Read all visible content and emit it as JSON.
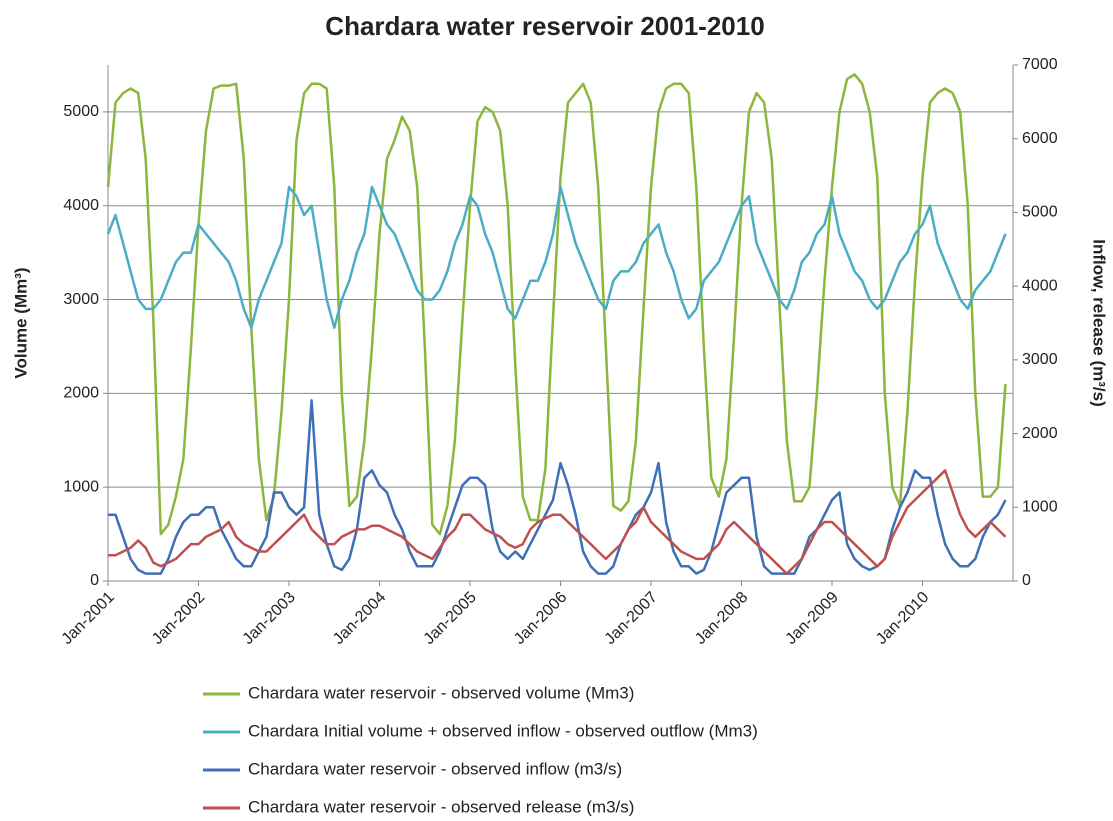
{
  "chart_data": {
    "type": "line",
    "title": "Chardara water reservoir  2001-2010",
    "ylabel": "Volume (Mm³)",
    "y2label": "Inflow, release (m³/s)",
    "x": [
      "2001-01",
      "2001-02",
      "2001-03",
      "2001-04",
      "2001-05",
      "2001-06",
      "2001-07",
      "2001-08",
      "2001-09",
      "2001-10",
      "2001-11",
      "2001-12",
      "2002-01",
      "2002-02",
      "2002-03",
      "2002-04",
      "2002-05",
      "2002-06",
      "2002-07",
      "2002-08",
      "2002-09",
      "2002-10",
      "2002-11",
      "2002-12",
      "2003-01",
      "2003-02",
      "2003-03",
      "2003-04",
      "2003-05",
      "2003-06",
      "2003-07",
      "2003-08",
      "2003-09",
      "2003-10",
      "2003-11",
      "2003-12",
      "2004-01",
      "2004-02",
      "2004-03",
      "2004-04",
      "2004-05",
      "2004-06",
      "2004-07",
      "2004-08",
      "2004-09",
      "2004-10",
      "2004-11",
      "2004-12",
      "2005-01",
      "2005-02",
      "2005-03",
      "2005-04",
      "2005-05",
      "2005-06",
      "2005-07",
      "2005-08",
      "2005-09",
      "2005-10",
      "2005-11",
      "2005-12",
      "2006-01",
      "2006-02",
      "2006-03",
      "2006-04",
      "2006-05",
      "2006-06",
      "2006-07",
      "2006-08",
      "2006-09",
      "2006-10",
      "2006-11",
      "2006-12",
      "2007-01",
      "2007-02",
      "2007-03",
      "2007-04",
      "2007-05",
      "2007-06",
      "2007-07",
      "2007-08",
      "2007-09",
      "2007-10",
      "2007-11",
      "2007-12",
      "2008-01",
      "2008-02",
      "2008-03",
      "2008-04",
      "2008-05",
      "2008-06",
      "2008-07",
      "2008-08",
      "2008-09",
      "2008-10",
      "2008-11",
      "2008-12",
      "2009-01",
      "2009-02",
      "2009-03",
      "2009-04",
      "2009-05",
      "2009-06",
      "2009-07",
      "2009-08",
      "2009-09",
      "2009-10",
      "2009-11",
      "2009-12",
      "2010-01",
      "2010-02",
      "2010-03",
      "2010-04",
      "2010-05",
      "2010-06",
      "2010-07",
      "2010-08",
      "2010-09",
      "2010-10",
      "2010-11",
      "2010-12"
    ],
    "xlim": [
      "2001-01",
      "2011-01"
    ],
    "xticks": [
      {
        "value": "2001-01",
        "label": "Jan-2001"
      },
      {
        "value": "2002-01",
        "label": "Jan-2002"
      },
      {
        "value": "2003-01",
        "label": "Jan-2003"
      },
      {
        "value": "2004-01",
        "label": "Jan-2004"
      },
      {
        "value": "2005-01",
        "label": "Jan-2005"
      },
      {
        "value": "2006-01",
        "label": "Jan-2006"
      },
      {
        "value": "2007-01",
        "label": "Jan-2007"
      },
      {
        "value": "2008-01",
        "label": "Jan-2008"
      },
      {
        "value": "2009-01",
        "label": "Jan-2009"
      },
      {
        "value": "2010-01",
        "label": "Jan-2010"
      }
    ],
    "ylim": [
      0,
      5500
    ],
    "yticks": [
      0,
      1000,
      2000,
      3000,
      4000,
      5000
    ],
    "y2lim": [
      0,
      7000
    ],
    "y2ticks": [
      0,
      1000,
      2000,
      3000,
      4000,
      5000,
      6000,
      7000
    ],
    "grid": true,
    "series": [
      {
        "name": "Chardara water reservoir - observed volume (Mm3)",
        "color": "#8db63c",
        "values": [
          4200,
          5100,
          5200,
          5250,
          5200,
          4500,
          2800,
          500,
          600,
          900,
          1300,
          2500,
          3800,
          4800,
          5250,
          5280,
          5280,
          5300,
          4500,
          2700,
          1300,
          650,
          900,
          1800,
          3000,
          4700,
          5200,
          5300,
          5300,
          5250,
          4200,
          2000,
          800,
          900,
          1500,
          2500,
          3700,
          4500,
          4700,
          4950,
          4800,
          4200,
          2500,
          600,
          500,
          800,
          1500,
          2800,
          4000,
          4900,
          5050,
          5000,
          4800,
          4000,
          2300,
          900,
          650,
          650,
          1200,
          2800,
          4300,
          5100,
          5200,
          5300,
          5100,
          4200,
          2500,
          800,
          750,
          850,
          1500,
          2900,
          4200,
          5000,
          5250,
          5300,
          5300,
          5200,
          4200,
          2500,
          1100,
          900,
          1300,
          2600,
          4000,
          5000,
          5200,
          5100,
          4500,
          3000,
          1500,
          850,
          850,
          1000,
          2000,
          3200,
          4200,
          5000,
          5350,
          5400,
          5300,
          5000,
          4300,
          2000,
          1000,
          800,
          1800,
          3200,
          4300,
          5100,
          5200,
          5250,
          5200,
          5000,
          4000,
          2000,
          900,
          900,
          1000,
          2100
        ]
      },
      {
        "name": "Chardara Initial volume + observed inflow - observed outflow (Mm3)",
        "color": "#4bacc6",
        "values": [
          3700,
          3900,
          3600,
          3300,
          3000,
          2900,
          2900,
          3000,
          3200,
          3400,
          3500,
          3500,
          3800,
          3700,
          3600,
          3500,
          3400,
          3200,
          2900,
          2700,
          3000,
          3200,
          3400,
          3600,
          4200,
          4100,
          3900,
          4000,
          3500,
          3000,
          2700,
          3000,
          3200,
          3500,
          3700,
          4200,
          4000,
          3800,
          3700,
          3500,
          3300,
          3100,
          3000,
          3000,
          3100,
          3300,
          3600,
          3800,
          4100,
          4000,
          3700,
          3500,
          3200,
          2900,
          2800,
          3000,
          3200,
          3200,
          3400,
          3700,
          4200,
          3900,
          3600,
          3400,
          3200,
          3000,
          2900,
          3200,
          3300,
          3300,
          3400,
          3600,
          3700,
          3800,
          3500,
          3300,
          3000,
          2800,
          2900,
          3200,
          3300,
          3400,
          3600,
          3800,
          4000,
          4100,
          3600,
          3400,
          3200,
          3000,
          2900,
          3100,
          3400,
          3500,
          3700,
          3800,
          4100,
          3700,
          3500,
          3300,
          3200,
          3000,
          2900,
          3000,
          3200,
          3400,
          3500,
          3700,
          3800,
          4000,
          3600,
          3400,
          3200,
          3000,
          2900,
          3100,
          3200,
          3300,
          3500,
          3700
        ]
      },
      {
        "name": "Chardara water reservoir - observed inflow (m3/s)",
        "color": "#3f6fb5",
        "axis": "y2",
        "values": [
          900,
          900,
          600,
          300,
          150,
          100,
          100,
          100,
          300,
          600,
          800,
          900,
          900,
          1000,
          1000,
          700,
          500,
          300,
          200,
          200,
          400,
          600,
          1200,
          1200,
          1000,
          900,
          1000,
          2450,
          900,
          500,
          200,
          150,
          300,
          700,
          1400,
          1500,
          1300,
          1200,
          900,
          700,
          400,
          200,
          200,
          200,
          400,
          700,
          1000,
          1300,
          1400,
          1400,
          1300,
          700,
          400,
          300,
          400,
          300,
          500,
          700,
          900,
          1100,
          1600,
          1300,
          900,
          400,
          200,
          100,
          100,
          200,
          500,
          700,
          900,
          1000,
          1200,
          1600,
          800,
          400,
          200,
          200,
          100,
          150,
          400,
          800,
          1200,
          1300,
          1400,
          1400,
          600,
          200,
          100,
          100,
          100,
          100,
          300,
          600,
          700,
          900,
          1100,
          1200,
          500,
          300,
          200,
          150,
          200,
          300,
          700,
          1000,
          1200,
          1500,
          1400,
          1400,
          900,
          500,
          300,
          200,
          200,
          300,
          600,
          800,
          900,
          1100
        ]
      },
      {
        "name": "Chardara water reservoir - observed release (m3/s)",
        "color": "#c0504d",
        "axis": "y2",
        "values": [
          350,
          350,
          400,
          450,
          550,
          450,
          250,
          200,
          250,
          300,
          400,
          500,
          500,
          600,
          650,
          700,
          800,
          600,
          500,
          450,
          400,
          400,
          500,
          600,
          700,
          800,
          900,
          700,
          600,
          500,
          500,
          600,
          650,
          700,
          700,
          750,
          750,
          700,
          650,
          600,
          500,
          400,
          350,
          300,
          450,
          600,
          700,
          900,
          900,
          800,
          700,
          650,
          600,
          500,
          450,
          500,
          700,
          800,
          850,
          900,
          900,
          800,
          700,
          600,
          500,
          400,
          300,
          400,
          500,
          700,
          800,
          1000,
          800,
          700,
          600,
          500,
          400,
          350,
          300,
          300,
          400,
          500,
          700,
          800,
          700,
          600,
          500,
          400,
          300,
          200,
          100,
          200,
          300,
          500,
          700,
          800,
          800,
          700,
          600,
          500,
          400,
          300,
          200,
          300,
          600,
          800,
          1000,
          1100,
          1200,
          1300,
          1400,
          1500,
          1200,
          900,
          700,
          600,
          700,
          800,
          700,
          600
        ]
      }
    ]
  }
}
